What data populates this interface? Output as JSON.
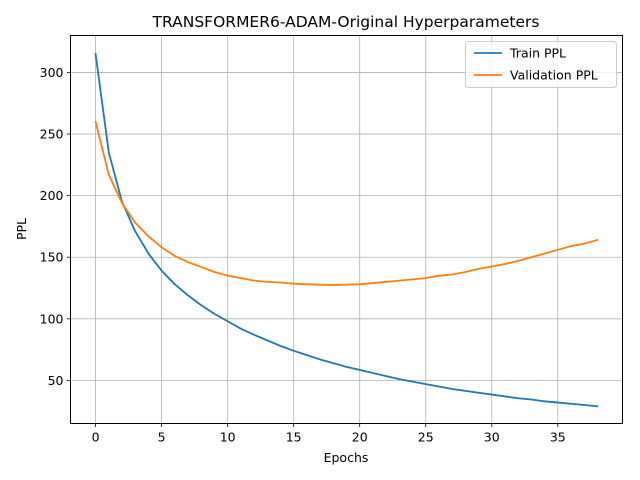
{
  "chart_data": {
    "type": "line",
    "title": "TRANSFORMER6-ADAM-Original Hyperparameters",
    "xlabel": "Epochs",
    "ylabel": "PPL",
    "xlim": [
      -1.9,
      39.9
    ],
    "ylim": [
      15,
      330
    ],
    "xticks": [
      0,
      5,
      10,
      15,
      20,
      25,
      30,
      35
    ],
    "yticks": [
      50,
      100,
      150,
      200,
      250,
      300
    ],
    "grid": true,
    "legend_position": "upper right",
    "x": [
      0,
      1,
      2,
      3,
      4,
      5,
      6,
      7,
      8,
      9,
      10,
      11,
      12,
      13,
      14,
      15,
      16,
      17,
      18,
      19,
      20,
      21,
      22,
      23,
      24,
      25,
      26,
      27,
      28,
      29,
      30,
      31,
      32,
      33,
      34,
      35,
      36,
      37,
      38
    ],
    "series": [
      {
        "name": "Train PPL",
        "color": "#1f77b4",
        "values": [
          315,
          235,
          195,
          171,
          153,
          139,
          128,
          119,
          111,
          104,
          98,
          92,
          87,
          82.5,
          78,
          74,
          70.5,
          67,
          64,
          61,
          58.5,
          56,
          53.5,
          51,
          49,
          47,
          45,
          43,
          41.5,
          40,
          38.5,
          37,
          35.5,
          34.5,
          33,
          32,
          31,
          30,
          29
        ]
      },
      {
        "name": "Validation PPL",
        "color": "#ff7f0e",
        "values": [
          260,
          217,
          194,
          178,
          167,
          158,
          151,
          146,
          142,
          138,
          135,
          133,
          131,
          130,
          129.5,
          128.5,
          128,
          127.7,
          127.5,
          127.7,
          128,
          129,
          130,
          131,
          132,
          133,
          135,
          136,
          138,
          140.5,
          142.5,
          144.5,
          147,
          150,
          153,
          156,
          159,
          161,
          164
        ]
      }
    ]
  }
}
